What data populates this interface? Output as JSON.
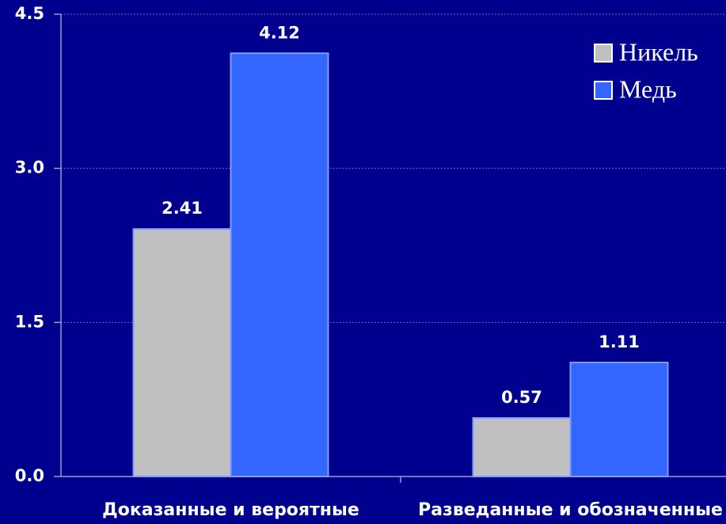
{
  "chart_data": {
    "type": "bar",
    "categories": [
      "Доказанные и вероятные",
      "Разведанные и обозначенные"
    ],
    "series": [
      {
        "name": "Никель",
        "color": "#c0c0c0",
        "values": [
          2.41,
          0.57
        ]
      },
      {
        "name": "Медь",
        "color": "#3366ff",
        "values": [
          4.12,
          1.11
        ]
      }
    ],
    "ylim": [
      0,
      4.5
    ],
    "yticks": [
      {
        "value": 0,
        "label": "0.0"
      },
      1.5,
      {
        "value": 3,
        "label": "3.0"
      },
      4.5
    ],
    "grid": true,
    "legend": "top-right"
  }
}
